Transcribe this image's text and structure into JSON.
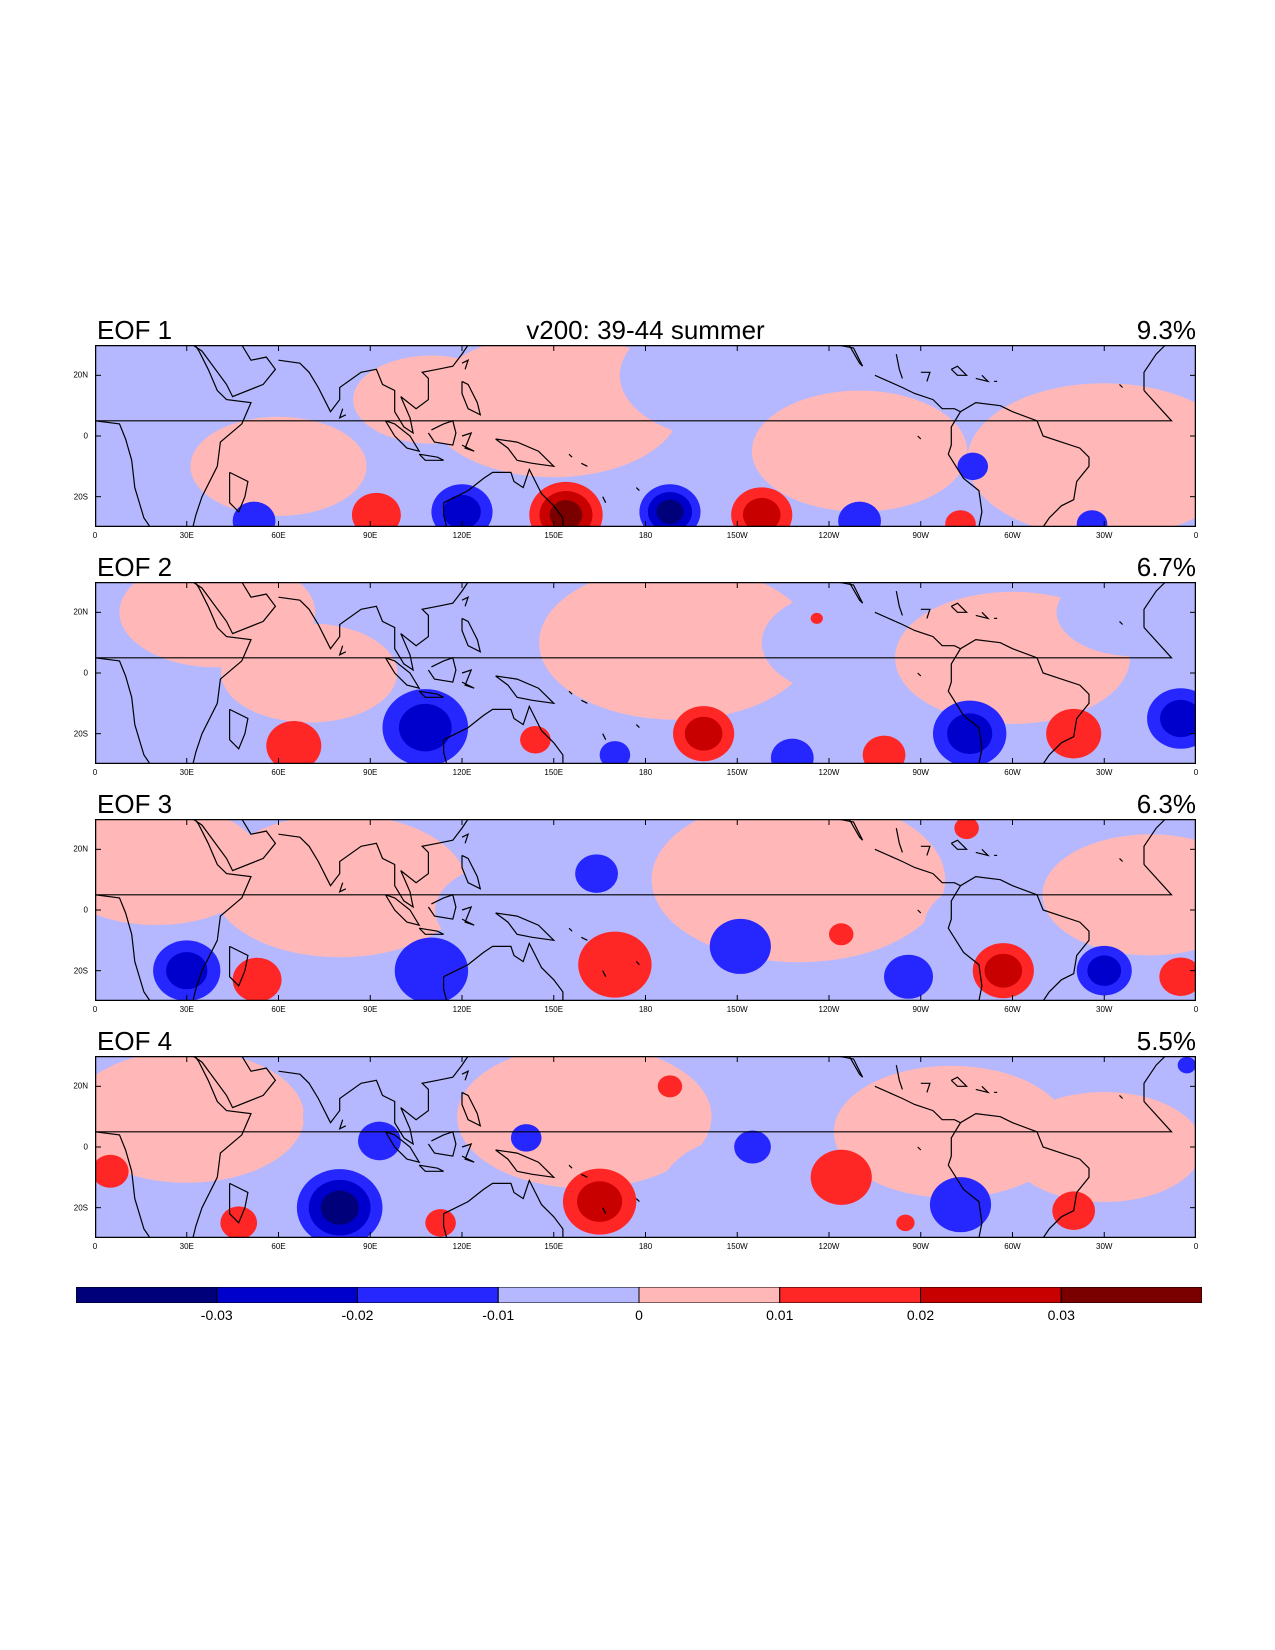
{
  "title": "v200: 39-44 summer",
  "panels": [
    {
      "label": "EOF 1",
      "variance": "9.3%"
    },
    {
      "label": "EOF 2",
      "variance": "6.7%"
    },
    {
      "label": "EOF 3",
      "variance": "6.3%"
    },
    {
      "label": "EOF 4",
      "variance": "5.5%"
    }
  ],
  "lon_ticks": [
    "0",
    "30E",
    "60E",
    "90E",
    "120E",
    "150E",
    "180",
    "150W",
    "120W",
    "90W",
    "60W",
    "30W",
    "0"
  ],
  "lat_ticks": [
    "20N",
    "0",
    "20S"
  ],
  "colorbar": {
    "levels": [
      "-0.03",
      "-0.02",
      "-0.01",
      "0",
      "0.01",
      "0.02",
      "0.03"
    ],
    "colors": [
      "#00007a",
      "#0000cd",
      "#2626ff",
      "#b5b8ff",
      "#ffb7b7",
      "#ff2626",
      "#c80000",
      "#7a0000"
    ]
  },
  "map_data": {
    "domain": {
      "lon": [
        0,
        360
      ],
      "lat": [
        -30,
        30
      ]
    },
    "anomalies": [
      [
        {
          "lon": 52,
          "lat": -28,
          "r": 7,
          "v": -0.012
        },
        {
          "lon": 92,
          "lat": -26,
          "r": 8,
          "v": 0.016
        },
        {
          "lon": 120,
          "lat": -25,
          "r": 10,
          "v": -0.026
        },
        {
          "lon": 154,
          "lat": -26,
          "r": 12,
          "v": 0.036
        },
        {
          "lon": 188,
          "lat": -25,
          "r": 10,
          "v": -0.032
        },
        {
          "lon": 218,
          "lat": -26,
          "r": 10,
          "v": 0.022
        },
        {
          "lon": 250,
          "lat": -28,
          "r": 7,
          "v": -0.011
        },
        {
          "lon": 287,
          "lat": -10,
          "r": 5,
          "v": -0.014
        },
        {
          "lon": 283,
          "lat": -29,
          "r": 5,
          "v": 0.012
        },
        {
          "lon": 326,
          "lat": -29,
          "r": 5,
          "v": -0.011
        }
      ],
      [
        {
          "lon": 108,
          "lat": -18,
          "r": 14,
          "v": -0.029
        },
        {
          "lon": 65,
          "lat": -24,
          "r": 9,
          "v": 0.016
        },
        {
          "lon": 144,
          "lat": -22,
          "r": 5,
          "v": 0.016
        },
        {
          "lon": 170,
          "lat": -27,
          "r": 5,
          "v": -0.011
        },
        {
          "lon": 199,
          "lat": -20,
          "r": 10,
          "v": 0.024
        },
        {
          "lon": 228,
          "lat": -28,
          "r": 7,
          "v": -0.012
        },
        {
          "lon": 258,
          "lat": -27,
          "r": 7,
          "v": 0.013
        },
        {
          "lon": 286,
          "lat": -20,
          "r": 12,
          "v": -0.028
        },
        {
          "lon": 320,
          "lat": -20,
          "r": 9,
          "v": 0.019
        },
        {
          "lon": 355,
          "lat": -15,
          "r": 11,
          "v": -0.022
        },
        {
          "lon": 236,
          "lat": 18,
          "r": 2,
          "v": 0.011
        }
      ],
      [
        {
          "lon": 30,
          "lat": -20,
          "r": 11,
          "v": -0.028
        },
        {
          "lon": 53,
          "lat": -23,
          "r": 8,
          "v": 0.017
        },
        {
          "lon": 110,
          "lat": -20,
          "r": 12,
          "v": -0.016
        },
        {
          "lon": 164,
          "lat": 12,
          "r": 7,
          "v": -0.014
        },
        {
          "lon": 170,
          "lat": -18,
          "r": 12,
          "v": 0.017
        },
        {
          "lon": 211,
          "lat": -12,
          "r": 10,
          "v": -0.018
        },
        {
          "lon": 244,
          "lat": -8,
          "r": 4,
          "v": 0.013
        },
        {
          "lon": 266,
          "lat": -22,
          "r": 8,
          "v": -0.016
        },
        {
          "lon": 297,
          "lat": -20,
          "r": 10,
          "v": 0.026
        },
        {
          "lon": 330,
          "lat": -20,
          "r": 9,
          "v": -0.024
        },
        {
          "lon": 355,
          "lat": -22,
          "r": 7,
          "v": 0.016
        },
        {
          "lon": 285,
          "lat": 27,
          "r": 4,
          "v": 0.014
        }
      ],
      [
        {
          "lon": 80,
          "lat": -20,
          "r": 14,
          "v": -0.032
        },
        {
          "lon": 5,
          "lat": -8,
          "r": 6,
          "v": 0.016
        },
        {
          "lon": 47,
          "lat": -25,
          "r": 6,
          "v": 0.017
        },
        {
          "lon": 93,
          "lat": 2,
          "r": 7,
          "v": -0.014
        },
        {
          "lon": 113,
          "lat": -25,
          "r": 5,
          "v": 0.015
        },
        {
          "lon": 141,
          "lat": 3,
          "r": 5,
          "v": -0.012
        },
        {
          "lon": 165,
          "lat": -18,
          "r": 12,
          "v": 0.023
        },
        {
          "lon": 188,
          "lat": 20,
          "r": 4,
          "v": 0.014
        },
        {
          "lon": 215,
          "lat": 0,
          "r": 6,
          "v": -0.016
        },
        {
          "lon": 244,
          "lat": -10,
          "r": 10,
          "v": 0.018
        },
        {
          "lon": 283,
          "lat": -19,
          "r": 10,
          "v": -0.019
        },
        {
          "lon": 320,
          "lat": -21,
          "r": 7,
          "v": 0.014
        },
        {
          "lon": 265,
          "lat": -25,
          "r": 3,
          "v": 0.012
        },
        {
          "lon": 357,
          "lat": 27,
          "r": 3,
          "v": -0.012
        }
      ]
    ]
  }
}
